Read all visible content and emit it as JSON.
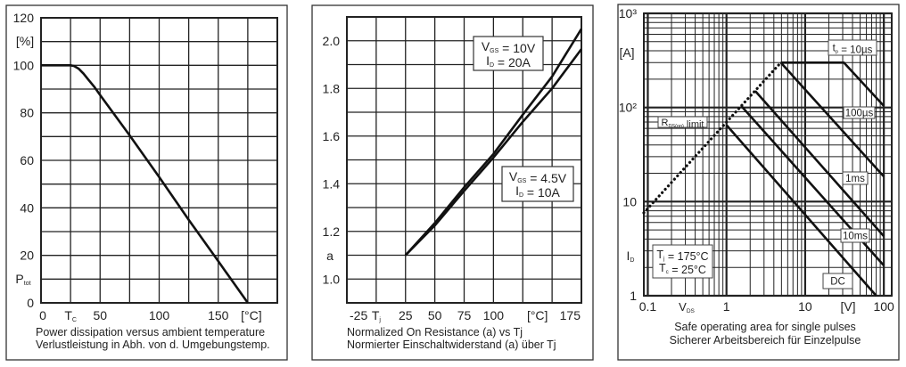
{
  "chart_data": [
    {
      "type": "line",
      "title": "",
      "caption": [
        "Power dissipation versus ambient temperature",
        "Verlustleistung in Abh. von d. Umgebungstemp."
      ],
      "xlabel_unit": "[°C]",
      "ylabel_unit": "[%]",
      "ylabel": "P_{tot}",
      "xlim": [
        0,
        200
      ],
      "ylim": [
        0,
        120
      ],
      "grid": true,
      "grid_step": [
        25,
        10
      ],
      "x_ticks": [
        {
          "value": 0,
          "label": "0"
        },
        {
          "value": 25,
          "label": "T_{C}"
        },
        {
          "value": 50,
          "label": "50"
        },
        {
          "value": 100,
          "label": "100"
        },
        {
          "value": 150,
          "label": "150"
        }
      ],
      "y_ticks": [
        {
          "value": 0,
          "label": "0"
        },
        {
          "value": 20,
          "label": "20"
        },
        {
          "value": 40,
          "label": "40"
        },
        {
          "value": 60,
          "label": "60"
        },
        {
          "value": 80,
          "label": "80"
        },
        {
          "value": 100,
          "label": "100"
        },
        {
          "value": 120,
          "label": "120"
        }
      ],
      "series": [
        {
          "x": [
            0,
            25,
            28,
            32,
            36,
            40,
            45,
            50,
            75,
            100,
            125,
            150,
            175
          ],
          "y": [
            100,
            100,
            99.7,
            98.5,
            96.5,
            94,
            91,
            87.5,
            70.5,
            53,
            35,
            17.5,
            0
          ]
        }
      ]
    },
    {
      "type": "line",
      "title": "",
      "caption": [
        "Normalized On Resistance (a) vs Tj",
        "Normierter Einschaltwiderstand (a) über Tj"
      ],
      "xlabel": "T_{j}",
      "xlabel_unit": "[°C]",
      "ylabel": "a",
      "xlim": [
        -25,
        175
      ],
      "ylim": [
        0.9,
        2.1
      ],
      "grid": true,
      "grid_step": [
        25,
        0.1
      ],
      "x_ticks": [
        {
          "value": -25,
          "label": "-25"
        },
        {
          "value": 25,
          "label": "25"
        },
        {
          "value": 50,
          "label": "50"
        },
        {
          "value": 75,
          "label": "75"
        },
        {
          "value": 100,
          "label": "100"
        },
        {
          "value": 175,
          "label": "175"
        }
      ],
      "y_ticks": [
        {
          "value": 1.0,
          "label": "1.0"
        },
        {
          "value": 1.2,
          "label": "1.2"
        },
        {
          "value": 1.4,
          "label": "1.4"
        },
        {
          "value": 1.6,
          "label": "1.6"
        },
        {
          "value": 1.8,
          "label": "1.8"
        },
        {
          "value": 2.0,
          "label": "2.0"
        }
      ],
      "series": [
        {
          "name": "V_{GS} = 10V, I_{D} = 20A",
          "x": [
            25,
            50,
            75,
            100,
            125,
            150,
            175
          ],
          "y": [
            1.1,
            1.235,
            1.385,
            1.525,
            1.69,
            1.85,
            2.05
          ]
        },
        {
          "name": "V_{GS} = 4.5V, I_{D} = 10A",
          "x": [
            25,
            50,
            75,
            100,
            125,
            150,
            175
          ],
          "y": [
            1.1,
            1.225,
            1.37,
            1.51,
            1.66,
            1.8,
            1.965
          ]
        }
      ],
      "annotations": [
        [
          "V_{GS} = 10V",
          "I_{D} = 20A"
        ],
        [
          "V_{GS} = 4.5V",
          "I_{D} = 10A"
        ]
      ]
    },
    {
      "type": "line",
      "title": "",
      "caption": [
        "Safe operating area for single pulses",
        "Sicherer Arbeitsbereich für Einzelpulse"
      ],
      "xlabel": "V_{DS}",
      "xlabel_unit": "[V]",
      "ylabel": "I_{D}",
      "ylabel_unit": "[A]",
      "xscale": "log",
      "yscale": "log",
      "xlim": [
        0.089,
        126
      ],
      "ylim": [
        1,
        1000
      ],
      "grid": true,
      "x_ticks": [
        {
          "value": 0.1,
          "label": "0.1"
        },
        {
          "value": 1,
          "label": "1"
        },
        {
          "value": 10,
          "label": "10"
        },
        {
          "value": 100,
          "label": "100"
        }
      ],
      "y_ticks": [
        {
          "value": 1,
          "label": "1"
        },
        {
          "value": 10,
          "label": "10"
        },
        {
          "value": 100,
          "label": "10²"
        },
        {
          "value": 1000,
          "label": "10³"
        }
      ],
      "series": [
        {
          "name": "R_{DS(on)} limit",
          "style": "dotted",
          "x": [
            0.089,
            4.9
          ],
          "y": [
            7.6,
            300
          ]
        },
        {
          "name": "t_{p} = 10µs",
          "x": [
            4.9,
            31,
            100
          ],
          "y": [
            300,
            300,
            104
          ]
        },
        {
          "name": "100µs",
          "x": [
            4.9,
            100
          ],
          "y": [
            300,
            18.5
          ]
        },
        {
          "name": "1ms",
          "x": [
            2.32,
            100
          ],
          "y": [
            150,
            4.3
          ]
        },
        {
          "name": "10ms",
          "x": [
            1.54,
            100
          ],
          "y": [
            104,
            2.1
          ]
        },
        {
          "name": "DC",
          "x": [
            1,
            80
          ],
          "y": [
            65,
            1
          ]
        }
      ],
      "annotations": [
        [
          "t_{p} = 10µs"
        ],
        [
          "100µs"
        ],
        [
          "1ms"
        ],
        [
          "10ms"
        ],
        [
          "DC"
        ],
        [
          "R_{DS(on)} limit"
        ],
        [
          "T_{j} = 175°C",
          "T_{c} = 25°C"
        ]
      ]
    }
  ]
}
